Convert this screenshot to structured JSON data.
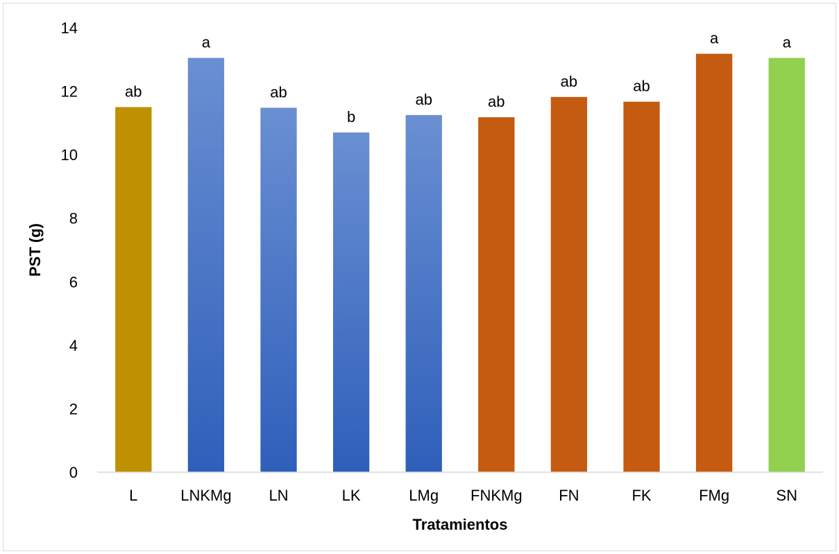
{
  "chart_data": {
    "type": "bar",
    "title": "",
    "xlabel": "Tratamientos",
    "ylabel": "PST (g)",
    "ylim": [
      0,
      14
    ],
    "yticks": [
      0,
      2,
      4,
      6,
      8,
      10,
      12,
      14
    ],
    "grid": false,
    "legend": "none",
    "categories": [
      "L",
      "LNKMg",
      "LN",
      "LK",
      "LMg",
      "FNKMg",
      "FN",
      "FK",
      "FMg",
      "SN"
    ],
    "values": [
      11.5,
      13.05,
      11.48,
      10.7,
      11.25,
      11.18,
      11.82,
      11.67,
      13.18,
      13.05
    ],
    "data_labels": [
      "ab",
      "a",
      "ab",
      "b",
      "ab",
      "ab",
      "ab",
      "ab",
      "a",
      "a"
    ],
    "bar_colors": [
      "#bf9000",
      "gradient-blue",
      "gradient-blue",
      "gradient-blue",
      "gradient-blue",
      "#c55a11",
      "#c55a11",
      "#c55a11",
      "#c55a11",
      "#92d050"
    ],
    "colors": {
      "gold": "#bf9000",
      "blue_light": "#6a8fd2",
      "blue_dark": "#2e5fba",
      "orange": "#c55a11",
      "green": "#92d050",
      "axis": "#d9d9d9"
    }
  }
}
